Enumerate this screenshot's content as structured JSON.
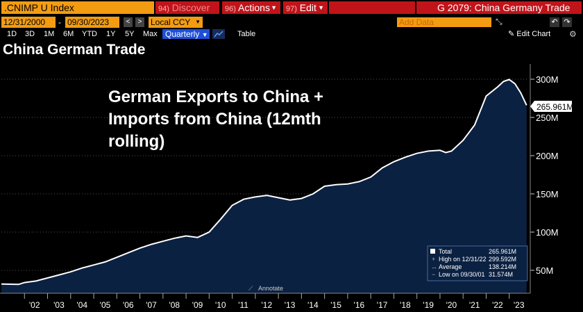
{
  "cmdbar": {
    "ticker": ".CNIMP U Index",
    "discover_num": "94)",
    "discover": "Discover",
    "actions_num": "96)",
    "actions": "Actions",
    "edit_num": "97)",
    "edit": "Edit",
    "function_title": "G 2079: China Germany Trade"
  },
  "range": {
    "start": "12/31/2000",
    "end": "09/30/2023",
    "currency": "Local CCY",
    "add_data_placeholder": "Add Data"
  },
  "periods": [
    "1D",
    "3D",
    "1M",
    "6M",
    "YTD",
    "1Y",
    "5Y",
    "Max"
  ],
  "frequency": "Quarterly",
  "table_label": "Table",
  "edit_chart_label": "Edit Chart",
  "chart_title": "China German Trade",
  "annotation_lines": [
    "German Exports to China +",
    "Imports from China (12mth",
    "rolling)"
  ],
  "annotate_label": "Annotate",
  "colors": {
    "line": "#ffffff",
    "fill": "#0b2142",
    "accent": "#f39c12",
    "red": "#c0141a"
  },
  "legend": {
    "rows": [
      {
        "label": "Total",
        "value": "265.961M"
      },
      {
        "label": "High on 12/31/22",
        "value": "299.592M"
      },
      {
        "label": "Average",
        "value": "138.214M"
      },
      {
        "label": "Low on 09/30/01",
        "value": "31.574M"
      }
    ]
  },
  "last_value_label": "265.961M",
  "chart_data": {
    "type": "area",
    "title": "China German Trade",
    "x": [
      2001.0,
      2001.75,
      2002.0,
      2002.5,
      2003.0,
      2003.5,
      2004.0,
      2004.5,
      2005.0,
      2005.5,
      2006.0,
      2006.5,
      2007.0,
      2007.5,
      2008.0,
      2008.5,
      2009.0,
      2009.5,
      2010.0,
      2010.5,
      2011.0,
      2011.5,
      2012.0,
      2012.5,
      2013.0,
      2013.5,
      2014.0,
      2014.5,
      2015.0,
      2015.5,
      2016.0,
      2016.5,
      2017.0,
      2017.5,
      2018.0,
      2018.5,
      2019.0,
      2019.5,
      2020.0,
      2020.25,
      2020.5,
      2021.0,
      2021.5,
      2022.0,
      2022.5,
      2022.75,
      2023.0,
      2023.25,
      2023.5,
      2023.75
    ],
    "values": [
      32,
      31.574,
      34,
      36,
      40,
      44,
      48,
      53,
      57,
      61,
      67,
      73,
      79,
      84,
      88,
      92,
      95,
      93,
      100,
      117,
      135,
      143,
      146,
      148,
      145,
      142,
      144,
      150,
      160,
      162,
      163,
      166,
      172,
      184,
      192,
      198,
      203,
      206,
      207,
      204,
      206,
      220,
      240,
      278,
      290,
      297,
      299.592,
      294,
      282,
      265.961
    ],
    "x_ticks": [
      "'02",
      "'03",
      "'04",
      "'05",
      "'06",
      "'07",
      "'08",
      "'09",
      "'10",
      "'11",
      "'12",
      "'13",
      "'14",
      "'15",
      "'16",
      "'17",
      "'18",
      "'19",
      "'20",
      "'21",
      "'22",
      "'23"
    ],
    "y_ticks": [
      "50M",
      "100M",
      "150M",
      "200M",
      "250M",
      "300M"
    ],
    "ylim": [
      20,
      320
    ],
    "xlim": [
      2001.0,
      2023.85
    ],
    "grid": true,
    "legend_position": "bottom-right"
  }
}
